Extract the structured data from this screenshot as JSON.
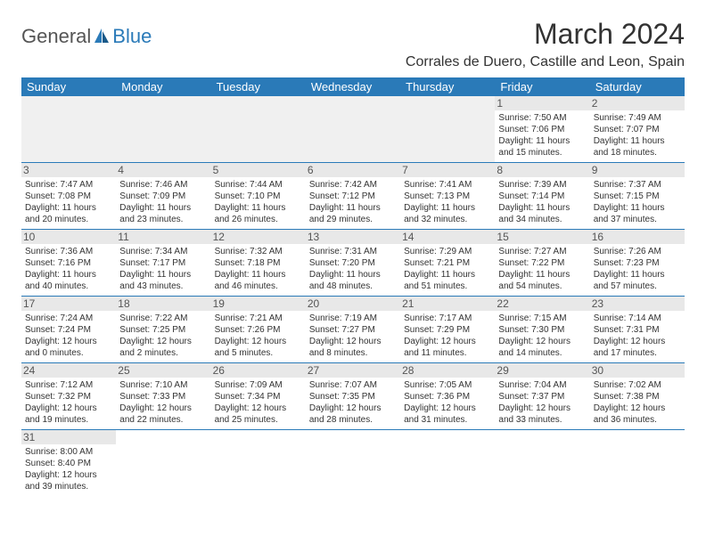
{
  "logo": {
    "general": "General",
    "blue": "Blue"
  },
  "title": "March 2024",
  "location": "Corrales de Duero, Castille and Leon, Spain",
  "dayNames": [
    "Sunday",
    "Monday",
    "Tuesday",
    "Wednesday",
    "Thursday",
    "Friday",
    "Saturday"
  ],
  "colors": {
    "header_bg": "#2a7ab8",
    "header_fg": "#ffffff",
    "daynum_bg": "#e8e8e8",
    "border": "#2a7ab8",
    "text": "#333333",
    "logo_blue": "#2a7ab8",
    "logo_gray": "#555555"
  },
  "rows": [
    [
      null,
      null,
      null,
      null,
      null,
      {
        "n": "1",
        "sr": "Sunrise: 7:50 AM",
        "ss": "Sunset: 7:06 PM",
        "d1": "Daylight: 11 hours",
        "d2": "and 15 minutes."
      },
      {
        "n": "2",
        "sr": "Sunrise: 7:49 AM",
        "ss": "Sunset: 7:07 PM",
        "d1": "Daylight: 11 hours",
        "d2": "and 18 minutes."
      }
    ],
    [
      {
        "n": "3",
        "sr": "Sunrise: 7:47 AM",
        "ss": "Sunset: 7:08 PM",
        "d1": "Daylight: 11 hours",
        "d2": "and 20 minutes."
      },
      {
        "n": "4",
        "sr": "Sunrise: 7:46 AM",
        "ss": "Sunset: 7:09 PM",
        "d1": "Daylight: 11 hours",
        "d2": "and 23 minutes."
      },
      {
        "n": "5",
        "sr": "Sunrise: 7:44 AM",
        "ss": "Sunset: 7:10 PM",
        "d1": "Daylight: 11 hours",
        "d2": "and 26 minutes."
      },
      {
        "n": "6",
        "sr": "Sunrise: 7:42 AM",
        "ss": "Sunset: 7:12 PM",
        "d1": "Daylight: 11 hours",
        "d2": "and 29 minutes."
      },
      {
        "n": "7",
        "sr": "Sunrise: 7:41 AM",
        "ss": "Sunset: 7:13 PM",
        "d1": "Daylight: 11 hours",
        "d2": "and 32 minutes."
      },
      {
        "n": "8",
        "sr": "Sunrise: 7:39 AM",
        "ss": "Sunset: 7:14 PM",
        "d1": "Daylight: 11 hours",
        "d2": "and 34 minutes."
      },
      {
        "n": "9",
        "sr": "Sunrise: 7:37 AM",
        "ss": "Sunset: 7:15 PM",
        "d1": "Daylight: 11 hours",
        "d2": "and 37 minutes."
      }
    ],
    [
      {
        "n": "10",
        "sr": "Sunrise: 7:36 AM",
        "ss": "Sunset: 7:16 PM",
        "d1": "Daylight: 11 hours",
        "d2": "and 40 minutes."
      },
      {
        "n": "11",
        "sr": "Sunrise: 7:34 AM",
        "ss": "Sunset: 7:17 PM",
        "d1": "Daylight: 11 hours",
        "d2": "and 43 minutes."
      },
      {
        "n": "12",
        "sr": "Sunrise: 7:32 AM",
        "ss": "Sunset: 7:18 PM",
        "d1": "Daylight: 11 hours",
        "d2": "and 46 minutes."
      },
      {
        "n": "13",
        "sr": "Sunrise: 7:31 AM",
        "ss": "Sunset: 7:20 PM",
        "d1": "Daylight: 11 hours",
        "d2": "and 48 minutes."
      },
      {
        "n": "14",
        "sr": "Sunrise: 7:29 AM",
        "ss": "Sunset: 7:21 PM",
        "d1": "Daylight: 11 hours",
        "d2": "and 51 minutes."
      },
      {
        "n": "15",
        "sr": "Sunrise: 7:27 AM",
        "ss": "Sunset: 7:22 PM",
        "d1": "Daylight: 11 hours",
        "d2": "and 54 minutes."
      },
      {
        "n": "16",
        "sr": "Sunrise: 7:26 AM",
        "ss": "Sunset: 7:23 PM",
        "d1": "Daylight: 11 hours",
        "d2": "and 57 minutes."
      }
    ],
    [
      {
        "n": "17",
        "sr": "Sunrise: 7:24 AM",
        "ss": "Sunset: 7:24 PM",
        "d1": "Daylight: 12 hours",
        "d2": "and 0 minutes."
      },
      {
        "n": "18",
        "sr": "Sunrise: 7:22 AM",
        "ss": "Sunset: 7:25 PM",
        "d1": "Daylight: 12 hours",
        "d2": "and 2 minutes."
      },
      {
        "n": "19",
        "sr": "Sunrise: 7:21 AM",
        "ss": "Sunset: 7:26 PM",
        "d1": "Daylight: 12 hours",
        "d2": "and 5 minutes."
      },
      {
        "n": "20",
        "sr": "Sunrise: 7:19 AM",
        "ss": "Sunset: 7:27 PM",
        "d1": "Daylight: 12 hours",
        "d2": "and 8 minutes."
      },
      {
        "n": "21",
        "sr": "Sunrise: 7:17 AM",
        "ss": "Sunset: 7:29 PM",
        "d1": "Daylight: 12 hours",
        "d2": "and 11 minutes."
      },
      {
        "n": "22",
        "sr": "Sunrise: 7:15 AM",
        "ss": "Sunset: 7:30 PM",
        "d1": "Daylight: 12 hours",
        "d2": "and 14 minutes."
      },
      {
        "n": "23",
        "sr": "Sunrise: 7:14 AM",
        "ss": "Sunset: 7:31 PM",
        "d1": "Daylight: 12 hours",
        "d2": "and 17 minutes."
      }
    ],
    [
      {
        "n": "24",
        "sr": "Sunrise: 7:12 AM",
        "ss": "Sunset: 7:32 PM",
        "d1": "Daylight: 12 hours",
        "d2": "and 19 minutes."
      },
      {
        "n": "25",
        "sr": "Sunrise: 7:10 AM",
        "ss": "Sunset: 7:33 PM",
        "d1": "Daylight: 12 hours",
        "d2": "and 22 minutes."
      },
      {
        "n": "26",
        "sr": "Sunrise: 7:09 AM",
        "ss": "Sunset: 7:34 PM",
        "d1": "Daylight: 12 hours",
        "d2": "and 25 minutes."
      },
      {
        "n": "27",
        "sr": "Sunrise: 7:07 AM",
        "ss": "Sunset: 7:35 PM",
        "d1": "Daylight: 12 hours",
        "d2": "and 28 minutes."
      },
      {
        "n": "28",
        "sr": "Sunrise: 7:05 AM",
        "ss": "Sunset: 7:36 PM",
        "d1": "Daylight: 12 hours",
        "d2": "and 31 minutes."
      },
      {
        "n": "29",
        "sr": "Sunrise: 7:04 AM",
        "ss": "Sunset: 7:37 PM",
        "d1": "Daylight: 12 hours",
        "d2": "and 33 minutes."
      },
      {
        "n": "30",
        "sr": "Sunrise: 7:02 AM",
        "ss": "Sunset: 7:38 PM",
        "d1": "Daylight: 12 hours",
        "d2": "and 36 minutes."
      }
    ],
    [
      {
        "n": "31",
        "sr": "Sunrise: 8:00 AM",
        "ss": "Sunset: 8:40 PM",
        "d1": "Daylight: 12 hours",
        "d2": "and 39 minutes."
      },
      null,
      null,
      null,
      null,
      null,
      null
    ]
  ]
}
